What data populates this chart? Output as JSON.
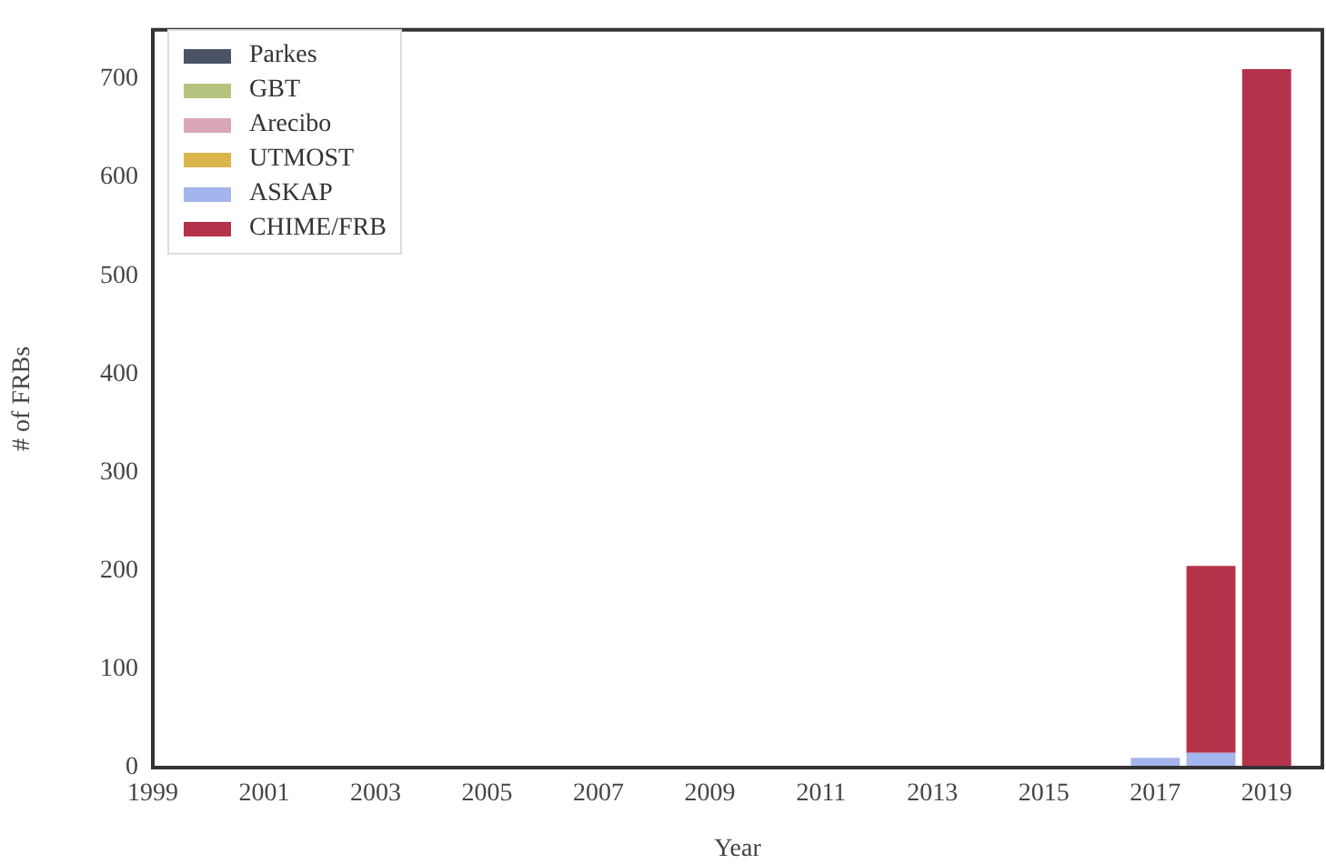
{
  "chart_data": {
    "type": "bar",
    "stacked": true,
    "xlabel": "Year",
    "ylabel": "# of FRBs",
    "x": [
      2015,
      2017,
      2018,
      2019
    ],
    "series": [
      {
        "name": "Parkes",
        "color": "#4a5466",
        "values": [
          null,
          null,
          0,
          0
        ]
      },
      {
        "name": "GBT",
        "color": "#b5c47e",
        "values": [
          0,
          0,
          0,
          0
        ]
      },
      {
        "name": "Arecibo",
        "color": "#d9a7b5",
        "values": [
          0,
          0,
          0,
          0
        ]
      },
      {
        "name": "UTMOST",
        "color": "#d9b54a",
        "values": [
          0,
          0,
          0,
          0
        ]
      },
      {
        "name": "ASKAP",
        "color": "#a4b4ec",
        "values": [
          0,
          10,
          15,
          0
        ]
      },
      {
        "name": "CHIME/FRB",
        "color": "#b5334a",
        "values": [
          0,
          0,
          190,
          710
        ]
      }
    ],
    "xlim": [
      1999,
      2020
    ],
    "xticks": [
      1999,
      2001,
      2003,
      2005,
      2007,
      2009,
      2011,
      2013,
      2015,
      2017,
      2019
    ],
    "ylim": [
      0,
      750
    ],
    "yticks": [
      0,
      100,
      200,
      300,
      400,
      500,
      600,
      700
    ],
    "grid": false,
    "legend": "top left"
  }
}
